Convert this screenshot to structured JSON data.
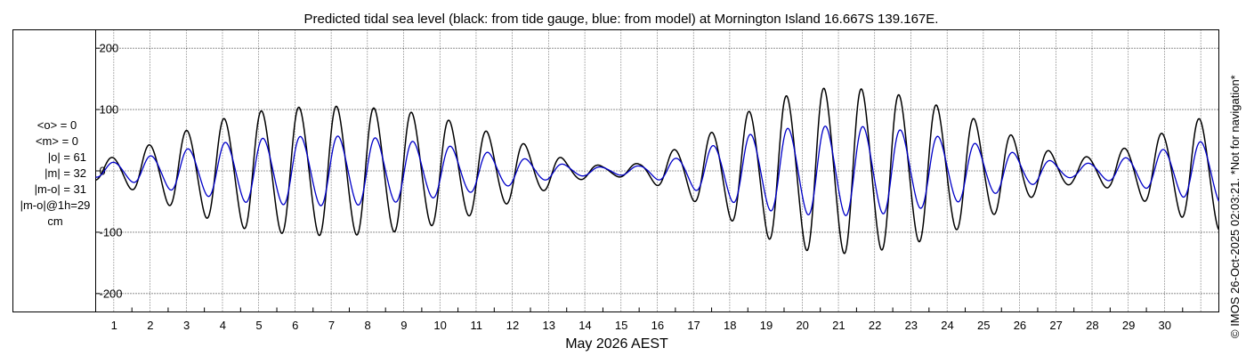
{
  "chart_data": {
    "type": "line",
    "title": "Predicted tidal sea level (black: from tide gauge, blue: from model) at Mornington Island 16.667S 139.167E.",
    "xlabel": "May 2026 AEST",
    "ylabel": "",
    "xlim": [
      0,
      31
    ],
    "ylim": [
      -230,
      230
    ],
    "yticks": [
      200,
      100,
      0,
      -100,
      -200
    ],
    "yticklabels": [
      "200",
      "100",
      "0",
      "-100",
      "-200"
    ],
    "xticks": [
      1,
      2,
      3,
      4,
      5,
      6,
      7,
      8,
      9,
      10,
      11,
      12,
      13,
      14,
      15,
      16,
      17,
      18,
      19,
      20,
      21,
      22,
      23,
      24,
      25,
      26,
      27,
      28,
      29,
      30
    ],
    "xticklabels": [
      "1",
      "2",
      "3",
      "4",
      "5",
      "6",
      "7",
      "8",
      "9",
      "10",
      "11",
      "12",
      "13",
      "14",
      "15",
      "16",
      "17",
      "18",
      "19",
      "20",
      "21",
      "22",
      "23",
      "24",
      "25",
      "26",
      "27",
      "28",
      "29",
      "30"
    ],
    "grid": true,
    "series": [
      {
        "color": "#000000",
        "daily_amplitude": [
          {
            "day": 0,
            "amp": 15
          },
          {
            "day": 1,
            "amp": 30
          },
          {
            "day": 2,
            "amp": 55
          },
          {
            "day": 3,
            "amp": 75
          },
          {
            "day": 4,
            "amp": 92
          },
          {
            "day": 5,
            "amp": 100
          },
          {
            "day": 6,
            "amp": 104
          },
          {
            "day": 7,
            "amp": 104
          },
          {
            "day": 8,
            "amp": 100
          },
          {
            "day": 9,
            "amp": 92
          },
          {
            "day": 10,
            "amp": 78
          },
          {
            "day": 11,
            "amp": 60
          },
          {
            "day": 12,
            "amp": 40
          },
          {
            "day": 13,
            "amp": 18
          },
          {
            "day": 14,
            "amp": 8
          },
          {
            "day": 15,
            "amp": 12
          },
          {
            "day": 16,
            "amp": 35
          },
          {
            "day": 17,
            "amp": 62
          },
          {
            "day": 18,
            "amp": 95
          },
          {
            "day": 19,
            "amp": 120
          },
          {
            "day": 20,
            "amp": 133
          },
          {
            "day": 21,
            "amp": 133
          },
          {
            "day": 22,
            "amp": 125
          },
          {
            "day": 23,
            "amp": 110
          },
          {
            "day": 24,
            "amp": 90
          },
          {
            "day": 25,
            "amp": 65
          },
          {
            "day": 26,
            "amp": 38
          },
          {
            "day": 27,
            "amp": 20
          },
          {
            "day": 28,
            "amp": 28
          },
          {
            "day": 29,
            "amp": 50
          },
          {
            "day": 30,
            "amp": 75
          },
          {
            "day": 31,
            "amp": 95
          }
        ]
      },
      {
        "color": "#0000c8",
        "daily_amplitude": [
          {
            "day": 0,
            "amp": 10
          },
          {
            "day": 1,
            "amp": 18
          },
          {
            "day": 2,
            "amp": 30
          },
          {
            "day": 3,
            "amp": 40
          },
          {
            "day": 4,
            "amp": 50
          },
          {
            "day": 5,
            "amp": 54
          },
          {
            "day": 6,
            "amp": 56
          },
          {
            "day": 7,
            "amp": 56
          },
          {
            "day": 8,
            "amp": 52
          },
          {
            "day": 9,
            "amp": 46
          },
          {
            "day": 10,
            "amp": 38
          },
          {
            "day": 11,
            "amp": 28
          },
          {
            "day": 12,
            "amp": 18
          },
          {
            "day": 13,
            "amp": 10
          },
          {
            "day": 14,
            "amp": 6
          },
          {
            "day": 15,
            "amp": 8
          },
          {
            "day": 16,
            "amp": 20
          },
          {
            "day": 17,
            "amp": 40
          },
          {
            "day": 18,
            "amp": 58
          },
          {
            "day": 19,
            "amp": 68
          },
          {
            "day": 20,
            "amp": 72
          },
          {
            "day": 21,
            "amp": 72
          },
          {
            "day": 22,
            "amp": 68
          },
          {
            "day": 23,
            "amp": 58
          },
          {
            "day": 24,
            "amp": 48
          },
          {
            "day": 25,
            "amp": 34
          },
          {
            "day": 26,
            "amp": 20
          },
          {
            "day": 27,
            "amp": 10
          },
          {
            "day": 28,
            "amp": 16
          },
          {
            "day": 29,
            "amp": 28
          },
          {
            "day": 30,
            "amp": 42
          },
          {
            "day": 31,
            "amp": 52
          }
        ]
      }
    ]
  },
  "stats": {
    "lines": [
      "<o> = 0",
      "<m> = 0",
      "|o| = 61",
      "|m| = 32",
      "|m-o| = 31",
      "|m-o|@1h=29",
      "cm"
    ]
  },
  "copyright": "© IMOS 26-Oct-2025 02:03:21. *Not for navigation*"
}
